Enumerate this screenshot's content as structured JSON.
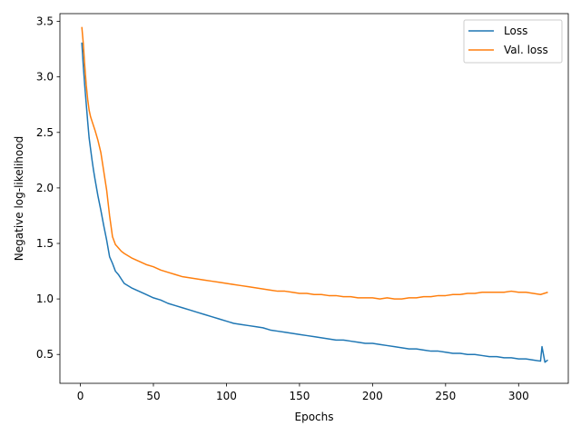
{
  "chart_data": {
    "type": "line",
    "xlabel": "Epochs",
    "ylabel": "Negative log-likelihood",
    "xlim": [
      -14,
      334
    ],
    "ylim": [
      0.24,
      3.57
    ],
    "xticks": [
      0,
      50,
      100,
      150,
      200,
      250,
      300
    ],
    "yticks": [
      0.5,
      1.0,
      1.5,
      2.0,
      2.5,
      3.0,
      3.5
    ],
    "legend_position": "top-right",
    "grid": false,
    "series": [
      {
        "name": "Loss",
        "color": "#1f77b4",
        "x": [
          1,
          2,
          3,
          4,
          5,
          6,
          7,
          8,
          9,
          10,
          12,
          14,
          16,
          18,
          20,
          22,
          24,
          26,
          28,
          30,
          35,
          40,
          45,
          50,
          55,
          60,
          65,
          70,
          75,
          80,
          85,
          90,
          95,
          100,
          105,
          110,
          115,
          120,
          125,
          130,
          135,
          140,
          145,
          150,
          155,
          160,
          165,
          170,
          175,
          180,
          185,
          190,
          195,
          200,
          205,
          210,
          215,
          220,
          225,
          230,
          235,
          240,
          245,
          250,
          255,
          260,
          265,
          270,
          275,
          280,
          285,
          290,
          295,
          300,
          305,
          310,
          315,
          316,
          318,
          320
        ],
        "values": [
          3.31,
          3.1,
          2.92,
          2.76,
          2.6,
          2.45,
          2.35,
          2.25,
          2.16,
          2.08,
          1.93,
          1.8,
          1.66,
          1.53,
          1.38,
          1.32,
          1.25,
          1.22,
          1.18,
          1.14,
          1.1,
          1.07,
          1.04,
          1.01,
          0.99,
          0.96,
          0.94,
          0.92,
          0.9,
          0.88,
          0.86,
          0.84,
          0.82,
          0.8,
          0.78,
          0.77,
          0.76,
          0.75,
          0.74,
          0.72,
          0.71,
          0.7,
          0.69,
          0.68,
          0.67,
          0.66,
          0.65,
          0.64,
          0.63,
          0.63,
          0.62,
          0.61,
          0.6,
          0.6,
          0.59,
          0.58,
          0.57,
          0.56,
          0.55,
          0.55,
          0.54,
          0.53,
          0.53,
          0.52,
          0.51,
          0.51,
          0.5,
          0.5,
          0.49,
          0.48,
          0.48,
          0.47,
          0.47,
          0.46,
          0.46,
          0.45,
          0.44,
          0.57,
          0.43,
          0.45
        ]
      },
      {
        "name": "Val. loss",
        "color": "#ff7f0e",
        "x": [
          1,
          2,
          3,
          4,
          5,
          6,
          7,
          8,
          10,
          12,
          14,
          16,
          18,
          20,
          22,
          24,
          26,
          28,
          30,
          35,
          40,
          45,
          50,
          55,
          60,
          65,
          70,
          75,
          80,
          85,
          90,
          95,
          100,
          105,
          110,
          115,
          120,
          125,
          130,
          135,
          140,
          145,
          150,
          155,
          160,
          165,
          170,
          175,
          180,
          185,
          190,
          195,
          200,
          205,
          210,
          215,
          220,
          225,
          230,
          235,
          240,
          245,
          250,
          255,
          260,
          265,
          270,
          275,
          280,
          285,
          290,
          295,
          300,
          305,
          310,
          315,
          320
        ],
        "values": [
          3.45,
          3.3,
          3.1,
          2.93,
          2.8,
          2.7,
          2.64,
          2.6,
          2.52,
          2.43,
          2.32,
          2.15,
          1.98,
          1.75,
          1.56,
          1.49,
          1.46,
          1.43,
          1.41,
          1.37,
          1.34,
          1.31,
          1.29,
          1.26,
          1.24,
          1.22,
          1.2,
          1.19,
          1.18,
          1.17,
          1.16,
          1.15,
          1.14,
          1.13,
          1.12,
          1.11,
          1.1,
          1.09,
          1.08,
          1.07,
          1.07,
          1.06,
          1.05,
          1.05,
          1.04,
          1.04,
          1.03,
          1.03,
          1.02,
          1.02,
          1.01,
          1.01,
          1.01,
          1.0,
          1.01,
          1.0,
          1.0,
          1.01,
          1.01,
          1.02,
          1.02,
          1.03,
          1.03,
          1.04,
          1.04,
          1.05,
          1.05,
          1.06,
          1.06,
          1.06,
          1.06,
          1.07,
          1.06,
          1.06,
          1.05,
          1.04,
          1.06
        ]
      }
    ]
  }
}
